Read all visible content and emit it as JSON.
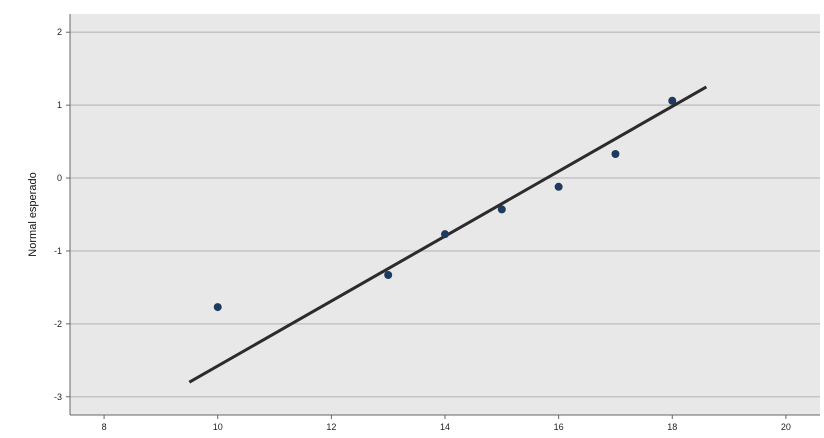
{
  "chart_data": {
    "type": "scatter",
    "title": "",
    "xlabel": "",
    "ylabel": "Normal esperado",
    "xlim": [
      7.4,
      20.6
    ],
    "ylim": [
      -3.25,
      2.25
    ],
    "x_ticks": [
      8,
      10,
      12,
      14,
      16,
      18,
      20
    ],
    "y_ticks": [
      -3,
      -2,
      -1,
      0,
      1,
      2
    ],
    "x_tick_labels": [
      "8",
      "10",
      "12",
      "14",
      "16",
      "18",
      "20"
    ],
    "y_tick_labels": [
      "-3",
      "-2",
      "-1",
      "0",
      "1",
      "2"
    ],
    "grid": "horizontal",
    "series": [
      {
        "points": [
          {
            "x": 10,
            "y": -1.77
          },
          {
            "x": 13,
            "y": -1.33
          },
          {
            "x": 14,
            "y": -0.77
          },
          {
            "x": 15,
            "y": -0.43
          },
          {
            "x": 16,
            "y": -0.12
          },
          {
            "x": 17,
            "y": 0.33
          },
          {
            "x": 18,
            "y": 1.06
          }
        ]
      }
    ],
    "reference_line": {
      "x1": 9.5,
      "y1": -2.8,
      "x2": 18.6,
      "y2": 1.25
    },
    "colors": {
      "plot_background": "#e8e8e8",
      "gridline": "#c4c4c4",
      "point": "#1f3a5f",
      "line": "#2b2b2b",
      "axis": "#666666"
    }
  }
}
